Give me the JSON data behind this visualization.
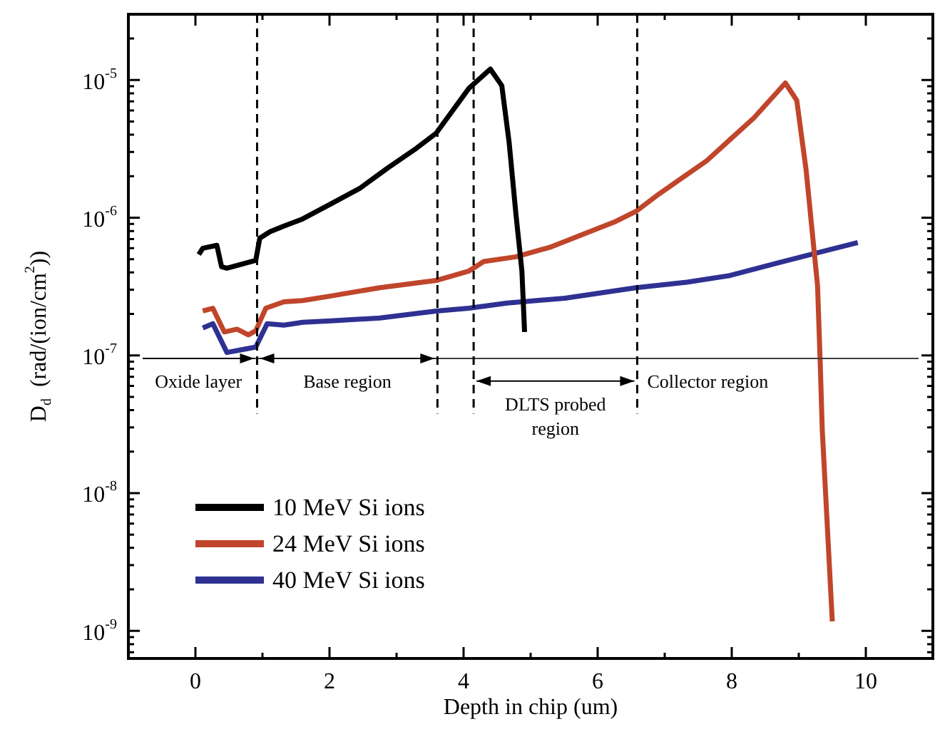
{
  "chart_data": {
    "type": "line",
    "xlabel": "Depth in chip (um)",
    "ylabel": "D$_{d}$  (rad/(ion/cm$^{2}$))",
    "log": true,
    "grid": false,
    "legend": "bottom left",
    "xlim": [
      -1,
      11
    ],
    "xticks": [
      0,
      {
        "value": 1,
        "label": null
      },
      2,
      {
        "value": 3,
        "label": null
      },
      4,
      {
        "value": 5,
        "label": null
      },
      6,
      {
        "value": 7,
        "label": null
      },
      8,
      {
        "value": 9,
        "label": null
      },
      10
    ],
    "ylim": [
      6.3e-10,
      3e-05
    ],
    "yticks": [
      {
        "value": 7e-10,
        "label": null
      },
      {
        "value": 8e-10,
        "label": null
      },
      {
        "value": 9e-10,
        "label": null
      },
      {
        "value": 1e-09,
        "label": "10$^{-9}$"
      },
      {
        "value": 2e-09,
        "label": null
      },
      {
        "value": 3e-09,
        "label": null
      },
      {
        "value": 4e-09,
        "label": null
      },
      {
        "value": 5e-09,
        "label": null
      },
      {
        "value": 6e-09,
        "label": null
      },
      {
        "value": 7e-09,
        "label": null
      },
      {
        "value": 8e-09,
        "label": null
      },
      {
        "value": 9e-09,
        "label": null
      },
      {
        "value": 1e-08,
        "label": "10$^{-8}$"
      },
      {
        "value": 2e-08,
        "label": null
      },
      {
        "value": 3e-08,
        "label": null
      },
      {
        "value": 4e-08,
        "label": null
      },
      {
        "value": 5e-08,
        "label": null
      },
      {
        "value": 6e-08,
        "label": null
      },
      {
        "value": 7e-08,
        "label": null
      },
      {
        "value": 8e-08,
        "label": null
      },
      {
        "value": 9e-08,
        "label": null
      },
      {
        "value": 1e-07,
        "label": "10$^{-7}$"
      },
      {
        "value": 2e-07,
        "label": null
      },
      {
        "value": 3e-07,
        "label": null
      },
      {
        "value": 4e-07,
        "label": null
      },
      {
        "value": 5e-07,
        "label": null
      },
      {
        "value": 6e-07,
        "label": null
      },
      {
        "value": 7e-07,
        "label": null
      },
      {
        "value": 8e-07,
        "label": null
      },
      {
        "value": 9e-07,
        "label": null
      },
      {
        "value": 1e-06,
        "label": "10$^{-6}$"
      },
      {
        "value": 2e-06,
        "label": null
      },
      {
        "value": 3e-06,
        "label": null
      },
      {
        "value": 4e-06,
        "label": null
      },
      {
        "value": 5e-06,
        "label": null
      },
      {
        "value": 6e-06,
        "label": null
      },
      {
        "value": 7e-06,
        "label": null
      },
      {
        "value": 8e-06,
        "label": null
      },
      {
        "value": 9e-06,
        "label": null
      },
      {
        "value": 1e-05,
        "label": "10$^{-5}$"
      },
      {
        "value": 2e-05,
        "label": null
      }
    ],
    "series": [
      {
        "name": "10 MeV Si ions",
        "color": "#000000",
        "x": [
          0.05,
          0.11,
          0.32,
          0.39,
          0.47,
          0.83,
          0.9,
          0.96,
          1.11,
          1.32,
          1.6,
          2.02,
          2.45,
          2.87,
          3.3,
          3.59,
          4.08,
          4.4,
          4.57,
          4.68,
          4.78,
          4.87,
          4.91
        ],
        "values": [
          5.4e-07,
          6e-07,
          6.3e-07,
          4.4e-07,
          4.3e-07,
          4.8e-07,
          4.9e-07,
          7.1e-07,
          7.9e-07,
          8.7e-07,
          9.8e-07,
          1.26e-06,
          1.63e-06,
          2.3e-06,
          3.2e-06,
          4.1e-06,
          8.7e-06,
          1.2e-05,
          9.1e-06,
          3.5e-06,
          1.07e-06,
          4.1e-07,
          1.48e-07
        ]
      },
      {
        "name": "24 MeV Si ions",
        "color": "#c0452b",
        "x": [
          0.11,
          0.26,
          0.43,
          0.62,
          0.79,
          0.9,
          1.05,
          1.32,
          1.6,
          2.02,
          2.75,
          3.59,
          4.08,
          4.3,
          4.78,
          5.29,
          5.85,
          6.27,
          6.57,
          6.91,
          7.63,
          8.33,
          8.8,
          8.97,
          9.11,
          9.28,
          9.32,
          9.35,
          9.5
        ],
        "values": [
          2.1e-07,
          2.2e-07,
          1.48e-07,
          1.55e-07,
          1.41e-07,
          1.51e-07,
          2.2e-07,
          2.45e-07,
          2.5e-07,
          2.7e-07,
          3.1e-07,
          3.5e-07,
          4.1e-07,
          4.8e-07,
          5.2e-07,
          6.1e-07,
          7.8e-07,
          9.4e-07,
          1.11e-06,
          1.48e-06,
          2.6e-06,
          5.3e-06,
          9.5e-06,
          7.1e-06,
          2.2e-06,
          3.2e-07,
          8.7e-08,
          2.9e-08,
          1.17e-09
        ]
      },
      {
        "name": "40 MeV Si ions",
        "color": "#2e3192",
        "x": [
          0.11,
          0.26,
          0.47,
          0.69,
          0.9,
          1.07,
          1.32,
          1.6,
          2.02,
          2.75,
          3.59,
          4.08,
          4.65,
          5.51,
          6.57,
          7.33,
          7.97,
          8.69,
          9.24,
          9.88
        ],
        "values": [
          1.58e-07,
          1.7e-07,
          1.05e-07,
          1.1e-07,
          1.15e-07,
          1.7e-07,
          1.66e-07,
          1.74e-07,
          1.78e-07,
          1.87e-07,
          2.1e-07,
          2.2e-07,
          2.4e-07,
          2.6e-07,
          3.1e-07,
          3.4e-07,
          3.8e-07,
          4.7e-07,
          5.5e-07,
          6.6e-07
        ]
      }
    ],
    "ref_lines": [
      {
        "axis": "y",
        "value": 9.5e-08,
        "color": "#404040"
      },
      {
        "axis": "x",
        "value": 0.92,
        "line_style": "dashed",
        "color": "#000000"
      },
      {
        "axis": "x",
        "value": 3.61,
        "line_style": "dashed",
        "color": "#000000"
      },
      {
        "axis": "x",
        "value": 4.15,
        "line_style": "dashed",
        "color": "#000000"
      },
      {
        "axis": "x",
        "value": 6.59,
        "line_style": "dashed",
        "color": "#000000"
      }
    ],
    "annotations": [
      {
        "text": "Oxide layer",
        "x": 0.92,
        "y": 9.5e-08
      },
      {
        "text": "Base region",
        "x": 3.61,
        "y": 9.5e-08
      },
      {
        "text": "DLTS probed\nregion",
        "x": 6.59,
        "y": 6.5e-08
      },
      "Collector region"
    ]
  }
}
